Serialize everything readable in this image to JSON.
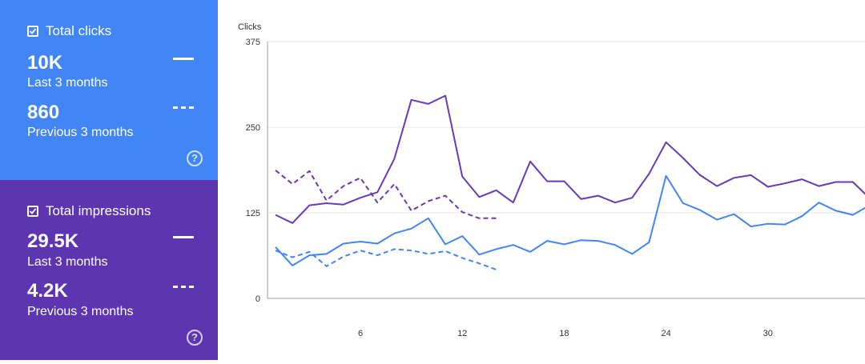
{
  "cards": {
    "clicks": {
      "label": "Total clicks",
      "value": "10K",
      "period": "Last 3 months",
      "prev_value": "860",
      "prev_period": "Previous 3 months",
      "color": "#4285f4"
    },
    "impressions": {
      "label": "Total impressions",
      "value": "29.5K",
      "period": "Last 3 months",
      "prev_value": "4.2K",
      "prev_period": "Previous 3 months",
      "color": "#5e35b1"
    }
  },
  "help_icon": "help-circle-icon",
  "checkbox_icon": "checkbox-checked-icon",
  "chart_data": {
    "type": "line",
    "ylabel": "Clicks",
    "ylim": [
      0,
      375
    ],
    "yticks": [
      0,
      125,
      250,
      375
    ],
    "xticks": [
      6,
      12,
      18,
      24,
      30
    ],
    "grid": true,
    "series": [
      {
        "color": "#673ab7",
        "dashed": false,
        "x": [
          1,
          2,
          3,
          4,
          5,
          6,
          7,
          8,
          9,
          10,
          11,
          12,
          13,
          14,
          15,
          16,
          17,
          18,
          19,
          20,
          21,
          22,
          23,
          24,
          25,
          26,
          27,
          28,
          29,
          30,
          31,
          32,
          33,
          34,
          35,
          36
        ],
        "y": [
          122,
          110,
          136,
          139,
          137,
          147,
          155,
          204,
          290,
          284,
          296,
          178,
          148,
          158,
          140,
          200,
          171,
          171,
          145,
          150,
          140,
          147,
          182,
          228,
          205,
          180,
          164,
          176,
          180,
          163,
          168,
          174,
          164,
          170,
          170,
          146
        ]
      },
      {
        "color": "#673ab7",
        "dashed": true,
        "x": [
          1,
          2,
          3,
          4,
          5,
          6,
          7,
          8,
          9,
          10,
          11,
          12,
          13,
          14
        ],
        "y": [
          187,
          167,
          186,
          143,
          164,
          176,
          140,
          167,
          128,
          142,
          150,
          126,
          117,
          117
        ]
      },
      {
        "color": "#4285f4",
        "dashed": false,
        "x": [
          1,
          2,
          3,
          4,
          5,
          6,
          7,
          8,
          9,
          10,
          11,
          12,
          13,
          14,
          15,
          16,
          17,
          18,
          19,
          20,
          21,
          22,
          23,
          24,
          25,
          26,
          27,
          28,
          29,
          30,
          31,
          32,
          33,
          34,
          35,
          36
        ],
        "y": [
          75,
          48,
          63,
          65,
          80,
          83,
          80,
          95,
          102,
          117,
          79,
          91,
          64,
          72,
          78,
          68,
          84,
          79,
          85,
          84,
          78,
          65,
          82,
          179,
          139,
          129,
          115,
          123,
          105,
          109,
          108,
          120,
          140,
          128,
          122,
          136
        ]
      },
      {
        "color": "#4285f4",
        "dashed": true,
        "x": [
          1,
          2,
          3,
          4,
          5,
          6,
          7,
          8,
          9,
          10,
          11,
          12,
          13,
          14
        ],
        "y": [
          70,
          60,
          68,
          47,
          61,
          70,
          63,
          72,
          70,
          65,
          69,
          59,
          51,
          42
        ]
      }
    ]
  }
}
